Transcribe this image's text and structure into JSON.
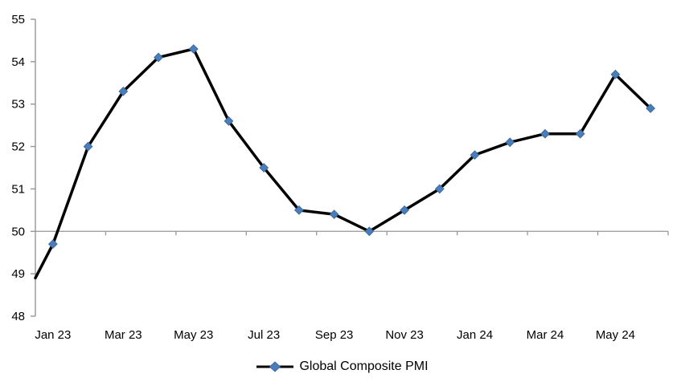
{
  "chart_data": {
    "type": "line",
    "title": "",
    "categories": [
      "Jan 23",
      "Feb 23",
      "Mar 23",
      "Apr 23",
      "May 23",
      "Jun 23",
      "Jul 23",
      "Aug 23",
      "Sep 23",
      "Oct 23",
      "Nov 23",
      "Dec 23",
      "Jan 24",
      "Feb 24",
      "Mar 24",
      "Apr 24",
      "May 24",
      "Jun 24"
    ],
    "series": [
      {
        "name": "Global Composite PMI",
        "values": [
          49.7,
          52.0,
          53.3,
          54.1,
          54.3,
          52.6,
          51.5,
          50.5,
          50.4,
          50.0,
          50.5,
          51.0,
          51.8,
          52.1,
          52.3,
          52.3,
          53.7,
          52.9
        ]
      }
    ],
    "leading_edge": {
      "value_at_left_axis": 48.9
    },
    "ylim": [
      48,
      55
    ],
    "y_ticks": [
      48,
      49,
      50,
      51,
      52,
      53,
      54,
      55
    ],
    "x_tick_labels": [
      "Jan 23",
      "Mar 23",
      "May 23",
      "Jul 23",
      "Sep 23",
      "Nov 23",
      "Jan 24",
      "Mar 24",
      "May 24"
    ],
    "x_axis_cross_value": 50,
    "grid": "none",
    "legend_position": "bottom-center",
    "marker": "diamond",
    "colors": {
      "line": "#000000",
      "marker_fill": "#4a7ebb",
      "marker_stroke": "#3b6aa0",
      "axis": "#969696",
      "text": "#000000"
    }
  },
  "legend": {
    "label": "Global Composite PMI"
  }
}
